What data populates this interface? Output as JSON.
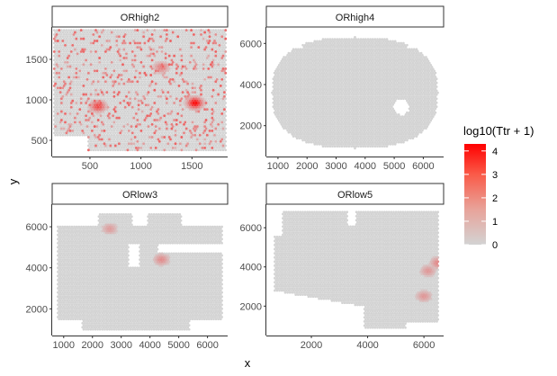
{
  "chart_data": {
    "type": "scatter",
    "xlabel": "x",
    "ylabel": "y",
    "legend": {
      "title": "log10(Ttr + 1)",
      "placement": "right",
      "breaks": [
        0,
        1,
        2,
        3,
        4
      ],
      "range": [
        0,
        4.3
      ],
      "low_color": "#d3d3d3",
      "high_color": "#ff0000"
    },
    "panels": [
      {
        "title": "ORhigh2",
        "xlim": [
          130,
          1850
        ],
        "ylim": [
          300,
          1900
        ],
        "xticks": [
          500,
          1000,
          1500
        ],
        "yticks": [
          500,
          1000,
          1500
        ],
        "shape": "rect",
        "tissue": {
          "x": [
            150,
            1830
          ],
          "y": [
            380,
            1860
          ]
        },
        "bottom_notch": {
          "x": [
            150,
            480
          ],
          "y_top": 560
        },
        "hotspots": [
          {
            "x": 1530,
            "y": 960,
            "value": 4.1
          },
          {
            "x": 580,
            "y": 920,
            "value": 2.6
          },
          {
            "x": 1200,
            "y": 1400,
            "value": 1.4
          }
        ]
      },
      {
        "title": "ORhigh4",
        "xlim": [
          600,
          6700
        ],
        "ylim": [
          500,
          6800
        ],
        "xticks": [
          1000,
          2000,
          3000,
          4000,
          5000,
          6000
        ],
        "yticks": [
          2000,
          4000,
          6000
        ],
        "shape": "ellipse",
        "tissue": {
          "x": [
            800,
            6500
          ],
          "y": [
            900,
            6300
          ]
        },
        "hole": {
          "x": 5250,
          "y": 2900,
          "rx": 260,
          "ry": 380
        },
        "hotspots": []
      },
      {
        "title": "ORlow3",
        "xlim": [
          600,
          6700
        ],
        "ylim": [
          700,
          7100
        ],
        "xticks": [
          1000,
          2000,
          3000,
          4000,
          5000,
          6000
        ],
        "yticks": [
          2000,
          4000,
          6000
        ],
        "shape": "cleft",
        "tissue": {
          "x": [
            800,
            6500
          ],
          "y": [
            1000,
            6600
          ]
        },
        "cleft": {
          "x_start": 4300,
          "y_center": 4950,
          "half_width": 170
        },
        "hotspots": [
          {
            "x": 4400,
            "y": 4400,
            "value": 1.1
          },
          {
            "x": 2600,
            "y": 5900,
            "value": 0.8
          }
        ]
      },
      {
        "title": "ORlow5",
        "xlim": [
          400,
          6700
        ],
        "ylim": [
          500,
          7200
        ],
        "xticks": [
          2000,
          4000,
          6000
        ],
        "yticks": [
          2000,
          4000,
          6000
        ],
        "shape": "notched",
        "tissue": {
          "x": [
            700,
            6500
          ],
          "y": [
            900,
            6800
          ]
        },
        "hotspots": [
          {
            "x": 6150,
            "y": 3800,
            "value": 0.9
          },
          {
            "x": 6000,
            "y": 2500,
            "value": 0.9
          },
          {
            "x": 6500,
            "y": 4200,
            "value": 1.2
          }
        ]
      }
    ]
  }
}
